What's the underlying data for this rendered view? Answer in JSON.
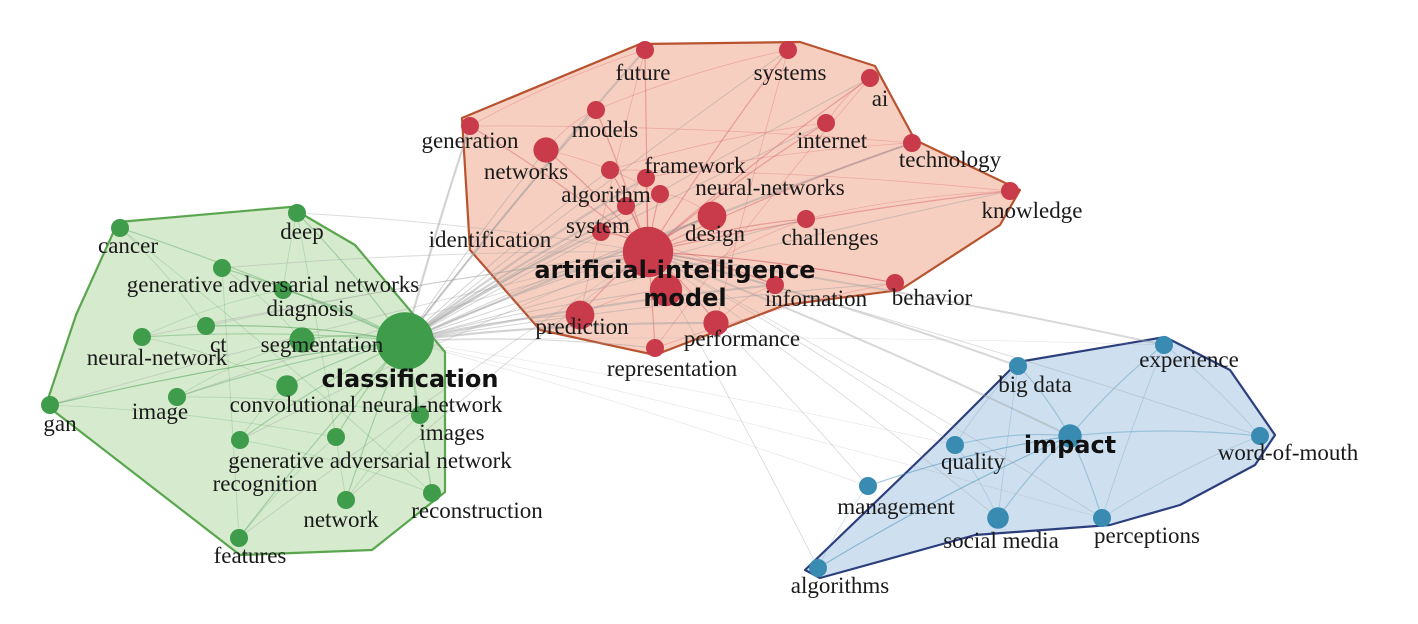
{
  "colors": {
    "red_fill": "#f6c7b5",
    "red_stroke": "#b8522f",
    "red_node": "#c93a4a",
    "green_fill": "#cfe6c6",
    "green_stroke": "#5aa64f",
    "green_node": "#3f9c4a",
    "blue_fill": "#c6d9ec",
    "blue_stroke": "#2b3f7d",
    "blue_node": "#3a8bb2",
    "gray_edge": "#9e9e9e"
  },
  "clusters": {
    "red": {
      "nodes": [
        {
          "label": "future",
          "weight": 1
        },
        {
          "label": "systems",
          "weight": 1
        },
        {
          "label": "ai",
          "weight": 1
        },
        {
          "label": "generation",
          "weight": 1
        },
        {
          "label": "models",
          "weight": 1
        },
        {
          "label": "internet",
          "weight": 1
        },
        {
          "label": "technology",
          "weight": 1
        },
        {
          "label": "networks",
          "weight": 1.4
        },
        {
          "label": "framework",
          "weight": 1
        },
        {
          "label": "neural-networks",
          "weight": 1
        },
        {
          "label": "algorithm",
          "weight": 1
        },
        {
          "label": "knowledge",
          "weight": 1
        },
        {
          "label": "system",
          "weight": 1
        },
        {
          "label": "design",
          "weight": 1.6
        },
        {
          "label": "challenges",
          "weight": 1
        },
        {
          "label": "identification",
          "weight": 1
        },
        {
          "label": "artificial-intelligence",
          "weight": 2.8,
          "bold": true
        },
        {
          "label": "model",
          "weight": 1.8,
          "bold": true
        },
        {
          "label": "infornation",
          "weight": 1
        },
        {
          "label": "behavior",
          "weight": 1
        },
        {
          "label": "prediction",
          "weight": 1.6
        },
        {
          "label": "performance",
          "weight": 1.4
        },
        {
          "label": "representation",
          "weight": 1
        }
      ]
    },
    "green": {
      "nodes": [
        {
          "label": "deep",
          "weight": 1
        },
        {
          "label": "cancer",
          "weight": 1
        },
        {
          "label": "generative adversarial networks",
          "weight": 1
        },
        {
          "label": "diagnosis",
          "weight": 1
        },
        {
          "label": "ct",
          "weight": 1
        },
        {
          "label": "segmentation",
          "weight": 1.4
        },
        {
          "label": "neural-network",
          "weight": 1
        },
        {
          "label": "classification",
          "weight": 3.2,
          "bold": true
        },
        {
          "label": "image",
          "weight": 1
        },
        {
          "label": "convolutional neural-network",
          "weight": 1.2
        },
        {
          "label": "gan",
          "weight": 1
        },
        {
          "label": "images",
          "weight": 1
        },
        {
          "label": "generative adversarial network",
          "weight": 1
        },
        {
          "label": "recognition",
          "weight": 1
        },
        {
          "label": "network",
          "weight": 1
        },
        {
          "label": "reconstruction",
          "weight": 1
        },
        {
          "label": "features",
          "weight": 1
        }
      ]
    },
    "blue": {
      "nodes": [
        {
          "label": "big data",
          "weight": 1
        },
        {
          "label": "experience",
          "weight": 1
        },
        {
          "label": "impact",
          "weight": 1.3,
          "bold": true
        },
        {
          "label": "quality",
          "weight": 1
        },
        {
          "label": "word-of-mouth",
          "weight": 1
        },
        {
          "label": "management",
          "weight": 1
        },
        {
          "label": "social media",
          "weight": 1.2
        },
        {
          "label": "perceptions",
          "weight": 1
        },
        {
          "label": "algorithms",
          "weight": 1
        }
      ]
    }
  }
}
